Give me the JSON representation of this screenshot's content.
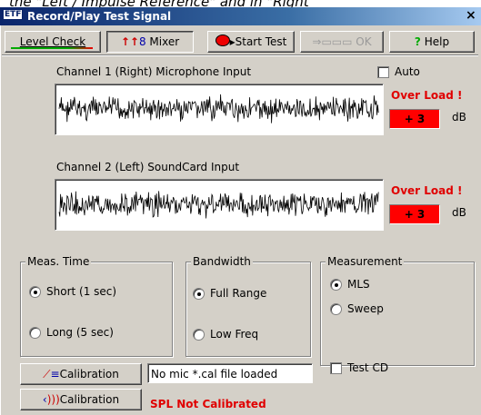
{
  "caption": "the \"Left / Impulse Reference\" and in \"Right",
  "window": {
    "icon": "ETF",
    "title": "Record/Play Test Signal",
    "close": "×"
  },
  "toolbar": [
    "Level Check",
    "Mixer",
    "Start Test",
    "OK",
    "Help"
  ],
  "auto": "Auto",
  "channels": [
    {
      "label": "Channel 1 (Right) Microphone Input",
      "overload": "Over Load !",
      "level": "+ 3",
      "unit": "dB"
    },
    {
      "label": "Channel 2 (Left) SoundCard Input",
      "overload": "Over Load !",
      "level": "+ 3",
      "unit": "dB"
    }
  ],
  "groups": [
    {
      "title": "Meas. Time",
      "options": [
        "Short (1 sec)",
        "Long (5 sec)"
      ],
      "selected": 0
    },
    {
      "title": "Bandwidth",
      "options": [
        "Full Range",
        "Low Freq"
      ],
      "selected": 0
    },
    {
      "title": "Measurement",
      "options": [
        "MLS",
        "Sweep"
      ],
      "selected": 0
    }
  ],
  "test_cd": "Test CD",
  "calibration": {
    "buttons": [
      "Calibration",
      "Calibration"
    ],
    "status_field": "No mic *.cal file loaded",
    "warning": "SPL Not Calibrated"
  }
}
